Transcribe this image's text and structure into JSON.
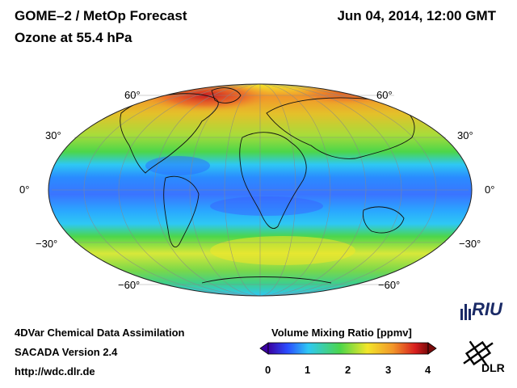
{
  "header": {
    "title": "GOME–2 / MetOp Forecast",
    "subtitle": "Ozone at 55.4 hPa",
    "datetime": "Jun 04, 2014, 12:00 GMT"
  },
  "map": {
    "projection": "Mollweide",
    "lat_labels_left": [
      "60°",
      "30°",
      "0°",
      "−30°",
      "−60°"
    ],
    "lat_labels_right": [
      "60°",
      "30°",
      "0°",
      "−30°",
      "−60°"
    ]
  },
  "footer": {
    "line1": "4DVar Chemical Data Assimilation",
    "line2": "SACADA Version 2.4",
    "line3": "http://wdc.dlr.de"
  },
  "colorbar": {
    "title": "Volume Mixing Ratio [ppmv]",
    "ticks": [
      "0",
      "1",
      "2",
      "3",
      "4"
    ],
    "min": 0,
    "max": 4
  },
  "logos": {
    "riu": "RIU",
    "dlr": "DLR"
  },
  "colors": {
    "low": "#3a00a0",
    "blue": "#2a6cff",
    "cyan": "#2ec8f4",
    "green": "#4cd64a",
    "yellow": "#f2e62a",
    "orange": "#f2962a",
    "red": "#d81e1e",
    "high": "#5a0a0a"
  }
}
